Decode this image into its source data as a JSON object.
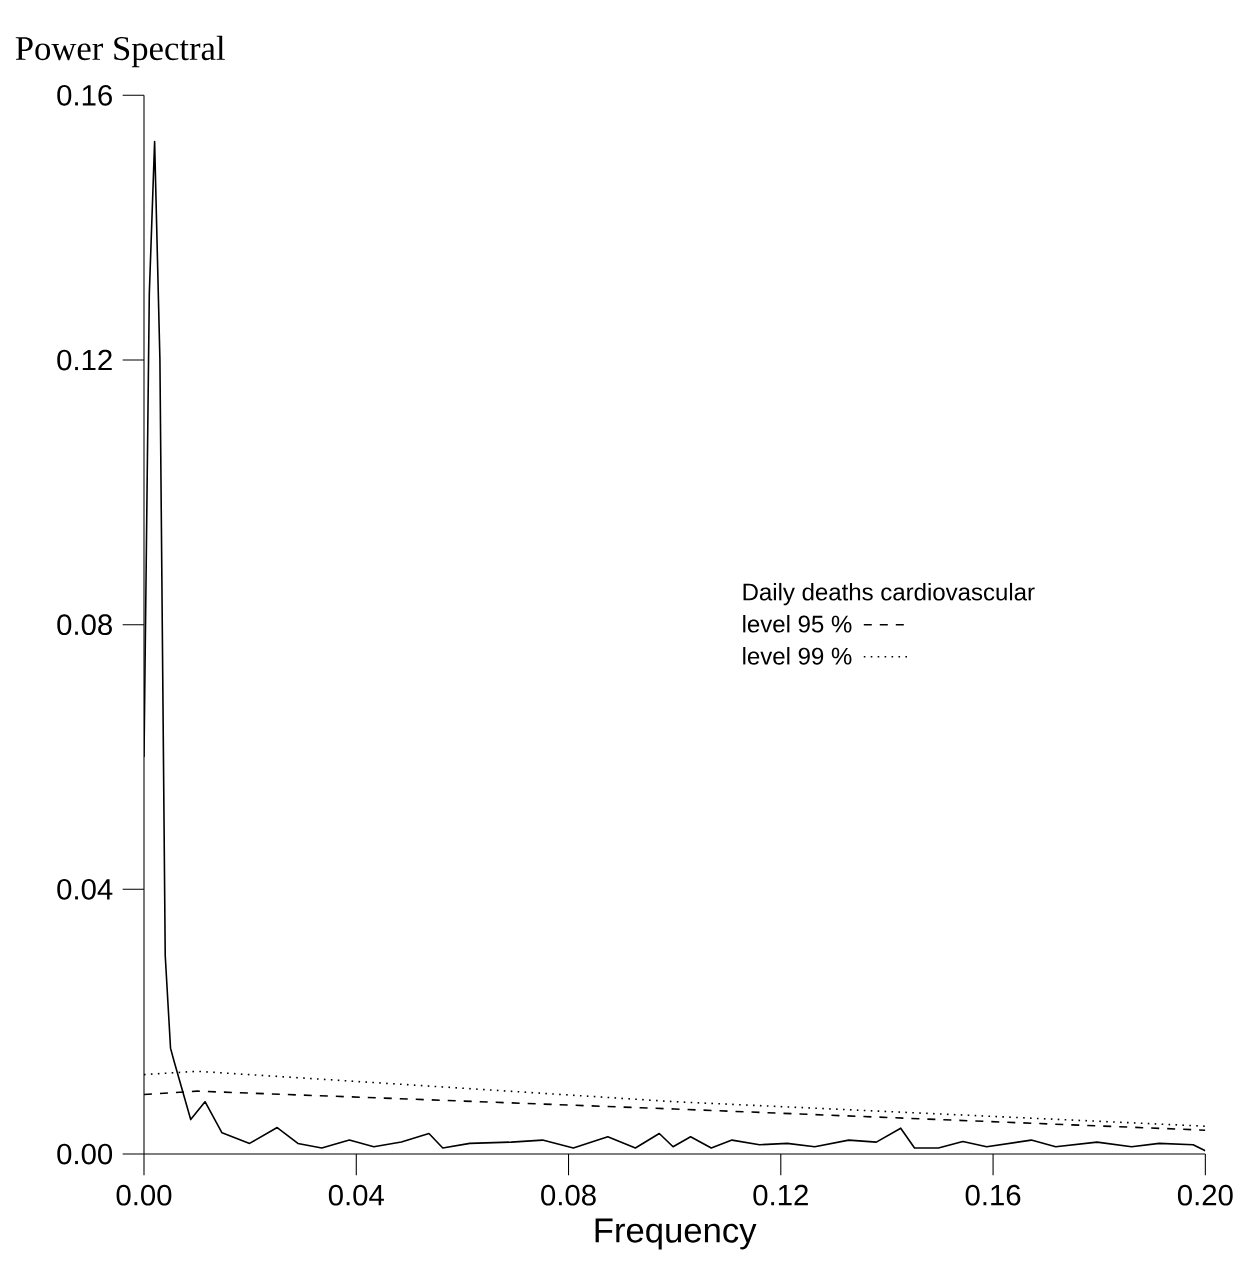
{
  "chart_data": {
    "type": "line",
    "ylabel": "Power Spectral",
    "xlabel": "Frequency",
    "legend_title": "Daily deaths cardiovascular",
    "legend": "center right",
    "xlim": [
      0,
      0.2
    ],
    "ylim": [
      0,
      0.16
    ],
    "xticks": [
      {
        "value": 0,
        "label": "0.00"
      },
      0.04,
      0.08,
      0.12,
      0.16,
      {
        "value": 0.2,
        "label": "0.20"
      }
    ],
    "yticks": [
      {
        "value": 0,
        "label": "0.00"
      },
      0.04,
      0.08,
      0.12,
      0.16
    ],
    "series": [
      {
        "color": "#000000",
        "line_style": "solid",
        "x": [
          0,
          0.001,
          0.002,
          0.003,
          0.004,
          0.005,
          0.0056,
          0.0088,
          0.0115,
          0.0147,
          0.0199,
          0.0251,
          0.029,
          0.0335,
          0.0387,
          0.0433,
          0.0485,
          0.0537,
          0.0563,
          0.0614,
          0.0692,
          0.0751,
          0.0809,
          0.0874,
          0.0926,
          0.0971,
          0.0997,
          0.103,
          0.1069,
          0.1108,
          0.116,
          0.1212,
          0.1264,
          0.1328,
          0.138,
          0.1426,
          0.1452,
          0.1497,
          0.1543,
          0.1588,
          0.1672,
          0.1718,
          0.1796,
          0.1861,
          0.1913,
          0.1977,
          0.2
        ],
        "values": [
          0.06,
          0.13,
          0.153,
          0.12,
          0.03,
          0.016,
          0.0142,
          0.0052,
          0.0079,
          0.0032,
          0.0016,
          0.004,
          0.0016,
          0.0009,
          0.0021,
          0.0011,
          0.0018,
          0.0031,
          0.0009,
          0.0016,
          0.0018,
          0.0021,
          0.0009,
          0.0026,
          0.0009,
          0.0031,
          0.0011,
          0.0026,
          0.0009,
          0.0021,
          0.0014,
          0.0016,
          0.0011,
          0.0021,
          0.0018,
          0.0039,
          0.0009,
          0.0009,
          0.0019,
          0.0011,
          0.0021,
          0.0011,
          0.0018,
          0.0011,
          0.0016,
          0.0014,
          0.0005
        ]
      },
      {
        "name": "level 95 %",
        "color": "#000000",
        "line_style": "dashed",
        "x": [
          0,
          0.01,
          0.1,
          0.2
        ],
        "values": [
          0.009,
          0.0095,
          0.0068,
          0.0036
        ]
      },
      {
        "name": "level 99 %",
        "color": "#000000",
        "line_style": "dotted",
        "x": [
          0,
          0.01,
          0.1,
          0.2
        ],
        "values": [
          0.012,
          0.0125,
          0.0079,
          0.0042
        ]
      }
    ]
  }
}
